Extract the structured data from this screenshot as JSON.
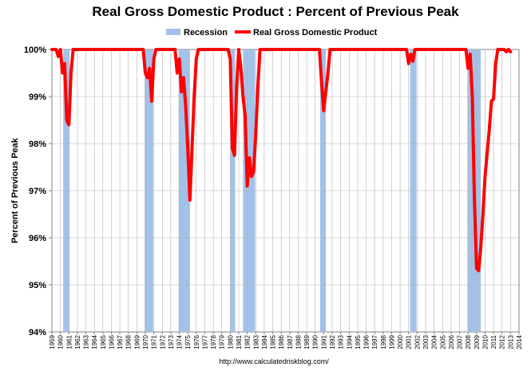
{
  "chart_data": {
    "type": "line",
    "title": "Real Gross Domestic Product : Percent of Previous Peak",
    "xlabel": "",
    "ylabel": "Percent of Previous Peak",
    "ylim": [
      94,
      100
    ],
    "xlim": [
      1959,
      2014
    ],
    "y_ticks": [
      "94%",
      "95%",
      "96%",
      "97%",
      "98%",
      "99%",
      "100%"
    ],
    "x_tick_labels": [
      "1959",
      "1960",
      "1961",
      "1962",
      "1963",
      "1964",
      "1965",
      "1966",
      "1967",
      "1968",
      "1969",
      "1970",
      "1971",
      "1972",
      "1973",
      "1974",
      "1975",
      "1976",
      "1977",
      "1978",
      "1979",
      "1980",
      "1981",
      "1982",
      "1983",
      "1984",
      "1985",
      "1986",
      "1987",
      "1988",
      "1989",
      "1990",
      "1991",
      "1992",
      "1993",
      "1994",
      "1995",
      "1996",
      "1997",
      "1998",
      "1999",
      "2000",
      "2001",
      "2002",
      "2003",
      "2004",
      "2005",
      "2006",
      "2007",
      "2008",
      "2009",
      "2010",
      "2011",
      "2012",
      "2013",
      "2014"
    ],
    "grid": true,
    "legend": [
      "Recession",
      "Real Gross Domestic Product"
    ],
    "legend_position": "top",
    "recessions": [
      {
        "start": 1960.33,
        "end": 1961.08
      },
      {
        "start": 1969.92,
        "end": 1970.92
      },
      {
        "start": 1973.92,
        "end": 1975.25
      },
      {
        "start": 1980.0,
        "end": 1980.58
      },
      {
        "start": 1981.5,
        "end": 1982.92
      },
      {
        "start": 1990.58,
        "end": 1991.25
      },
      {
        "start": 2001.17,
        "end": 2001.92
      },
      {
        "start": 2007.92,
        "end": 2009.5
      }
    ],
    "series": [
      {
        "name": "Real Gross Domestic Product",
        "color": "#ff0000",
        "x": [
          1959.0,
          1959.5,
          1959.75,
          1960.0,
          1960.25,
          1960.5,
          1960.75,
          1961.0,
          1961.25,
          1961.5,
          1969.75,
          1970.0,
          1970.25,
          1970.5,
          1970.75,
          1971.0,
          1971.25,
          1973.5,
          1973.75,
          1974.0,
          1974.25,
          1974.5,
          1974.75,
          1975.0,
          1975.25,
          1975.5,
          1975.75,
          1976.0,
          1976.25,
          1979.75,
          1980.0,
          1980.25,
          1980.5,
          1980.75,
          1981.0,
          1981.25,
          1981.5,
          1981.75,
          1982.0,
          1982.25,
          1982.5,
          1982.75,
          1983.0,
          1983.25,
          1983.5,
          1983.75,
          1990.25,
          1990.5,
          1990.75,
          1991.0,
          1991.25,
          1991.5,
          1991.75,
          2000.75,
          2001.0,
          2001.25,
          2001.5,
          2001.75,
          2002.0,
          2007.75,
          2008.0,
          2008.25,
          2008.5,
          2008.75,
          2009.0,
          2009.25,
          2009.5,
          2009.75,
          2010.0,
          2010.25,
          2010.5,
          2010.75,
          2011.0,
          2011.25,
          2011.5,
          2011.75,
          2012.0,
          2012.25,
          2012.5,
          2012.75,
          2013.0
        ],
        "values": [
          100.0,
          100.0,
          99.85,
          100.0,
          99.5,
          99.7,
          98.5,
          98.4,
          99.5,
          100.0,
          100.0,
          99.5,
          99.4,
          99.6,
          98.9,
          99.8,
          100.0,
          100.0,
          99.5,
          99.8,
          99.1,
          99.4,
          98.8,
          97.9,
          96.8,
          97.9,
          99.0,
          99.8,
          100.0,
          100.0,
          99.8,
          97.9,
          97.75,
          99.2,
          100.0,
          99.6,
          99.0,
          98.6,
          97.1,
          97.7,
          97.3,
          97.4,
          98.2,
          99.2,
          100.0,
          100.0,
          100.0,
          100.0,
          99.3,
          98.7,
          99.1,
          99.5,
          100.0,
          100.0,
          99.7,
          99.9,
          99.75,
          100.0,
          100.0,
          100.0,
          99.6,
          99.9,
          99.0,
          96.8,
          95.35,
          95.3,
          95.8,
          96.5,
          97.3,
          97.8,
          98.3,
          98.9,
          98.95,
          99.7,
          100.0,
          100.0,
          100.0,
          100.0,
          99.95,
          100.0,
          99.95
        ]
      }
    ]
  },
  "source": "http://www.calculatedriskblog.com/"
}
